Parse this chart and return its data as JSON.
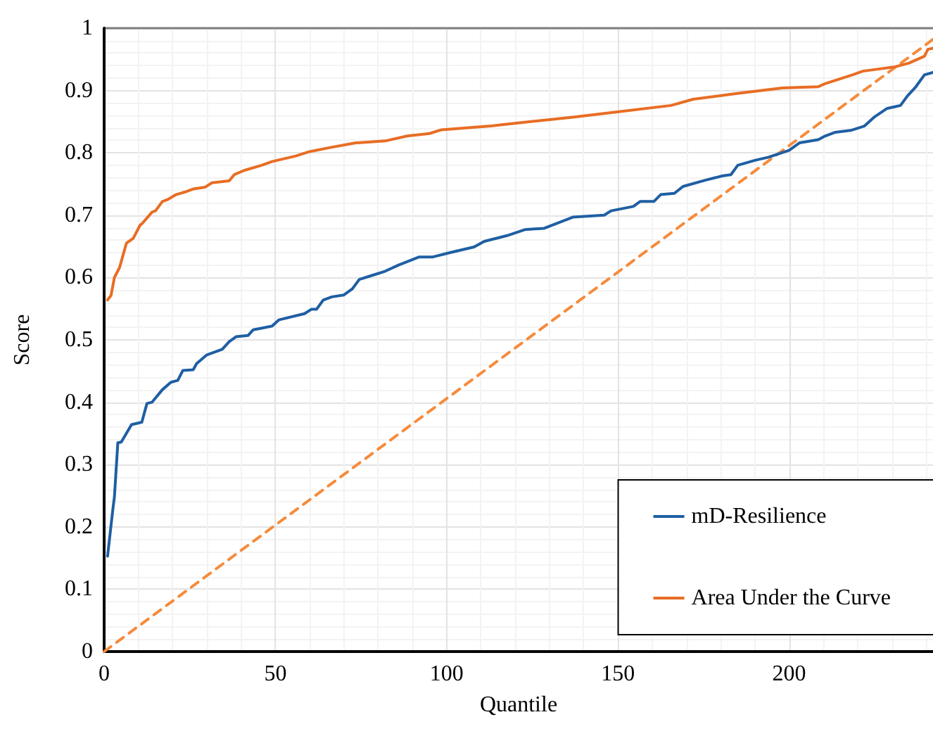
{
  "chart_data": {
    "type": "line",
    "xlabel": "Quantile",
    "ylabel": "Score",
    "xlim": [
      0,
      242
    ],
    "xticks": [
      0,
      50,
      100,
      150,
      200
    ],
    "ylim": [
      0,
      1
    ],
    "yticks": [
      0,
      0.1,
      0.2,
      0.3,
      0.4,
      0.5,
      0.6,
      0.7,
      0.8,
      0.9,
      1
    ],
    "grid": true,
    "legend": "bottom right",
    "marker": "none",
    "series": [
      {
        "name": "mD-Resilience",
        "color": "#1f5fa3",
        "x": [
          1,
          2.5,
          3,
          4,
          5,
          8,
          11,
          12.5,
          14,
          17,
          19.5,
          21.5,
          23,
          26,
          27,
          30,
          34.5,
          36.5,
          38.5,
          42,
          43.5,
          49,
          51,
          58.5,
          60.5,
          62,
          64,
          66.5,
          70,
          72.5,
          74.5,
          78,
          82,
          86,
          92,
          96,
          101,
          108,
          111,
          117.5,
          123,
          128.5,
          137,
          146,
          148,
          154.5,
          156.5,
          160.5,
          162.5,
          166.5,
          169,
          175.5,
          180.5,
          183,
          185,
          190,
          194,
          200,
          203,
          208.5,
          210.5,
          213.5,
          218,
          222,
          225,
          228.5,
          232.5,
          234.5,
          237,
          239.5,
          242
        ],
        "values": [
          0.153,
          0.226,
          0.248,
          0.335,
          0.336,
          0.364,
          0.368,
          0.398,
          0.4,
          0.42,
          0.432,
          0.435,
          0.451,
          0.452,
          0.462,
          0.476,
          0.485,
          0.497,
          0.505,
          0.507,
          0.516,
          0.522,
          0.532,
          0.542,
          0.549,
          0.549,
          0.564,
          0.569,
          0.572,
          0.582,
          0.597,
          0.603,
          0.61,
          0.62,
          0.633,
          0.633,
          0.64,
          0.649,
          0.658,
          0.667,
          0.677,
          0.679,
          0.697,
          0.7,
          0.707,
          0.714,
          0.722,
          0.722,
          0.733,
          0.735,
          0.746,
          0.756,
          0.763,
          0.765,
          0.78,
          0.788,
          0.793,
          0.804,
          0.816,
          0.821,
          0.827,
          0.833,
          0.836,
          0.843,
          0.858,
          0.871,
          0.876,
          0.891,
          0.906,
          0.925,
          0.929
        ]
      },
      {
        "name": "Area Under the Curve",
        "color": "#e86d24",
        "x": [
          1,
          2,
          3,
          4.5,
          6.5,
          8.5,
          10.5,
          11,
          14,
          15,
          17,
          18.5,
          21,
          23.5,
          26,
          29.5,
          31.5,
          36.5,
          38,
          41,
          46,
          49,
          56,
          60,
          65.5,
          73.5,
          82,
          88.5,
          95,
          98.5,
          113,
          117.5,
          136.5,
          149,
          165.5,
          172,
          184.5,
          198,
          208.5,
          210.5,
          218.5,
          221.5,
          231,
          235,
          239.5,
          240.5,
          242
        ],
        "values": [
          0.564,
          0.571,
          0.6,
          0.616,
          0.655,
          0.663,
          0.684,
          0.686,
          0.705,
          0.707,
          0.722,
          0.725,
          0.733,
          0.737,
          0.742,
          0.745,
          0.752,
          0.755,
          0.765,
          0.772,
          0.78,
          0.786,
          0.795,
          0.802,
          0.808,
          0.816,
          0.819,
          0.827,
          0.831,
          0.837,
          0.843,
          0.846,
          0.857,
          0.865,
          0.876,
          0.886,
          0.895,
          0.904,
          0.906,
          0.911,
          0.925,
          0.931,
          0.938,
          0.944,
          0.955,
          0.966,
          0.968
        ]
      },
      {
        "color": "#f58b3c",
        "line_style": "dashed",
        "x": [
          0,
          242
        ],
        "values": [
          0,
          0.982
        ]
      }
    ]
  }
}
